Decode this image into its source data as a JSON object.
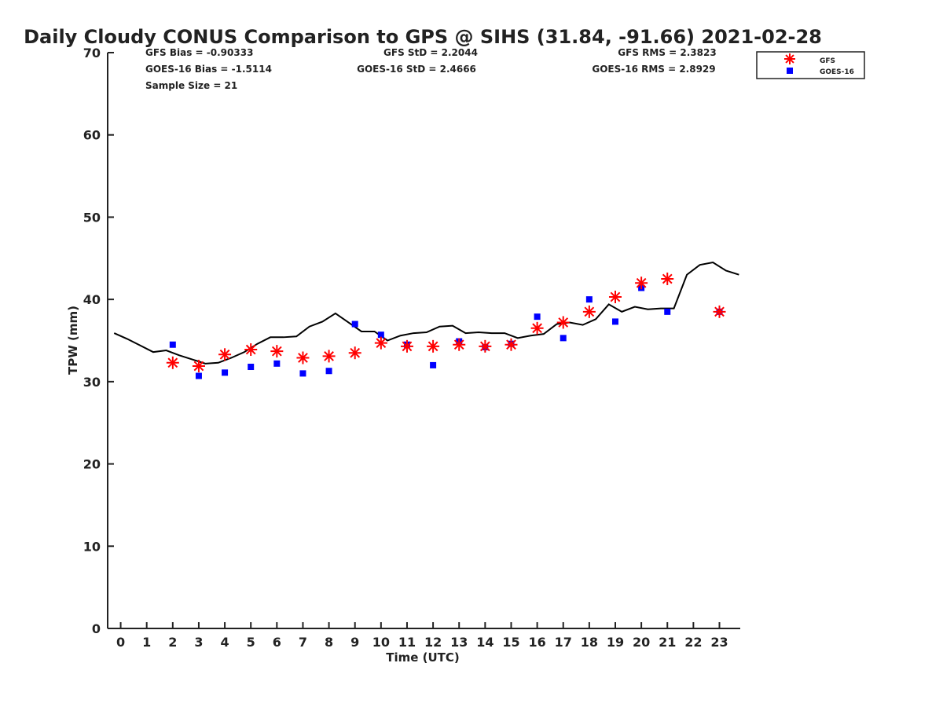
{
  "chart_data": {
    "type": "scatter",
    "title": "Daily Cloudy CONUS Comparison to GPS @ SIHS (31.84, -91.66) 2021-02-28",
    "xlabel": "Time (UTC)",
    "ylabel": "TPW (mm)",
    "xlim": [
      -0.5,
      23.8
    ],
    "ylim": [
      0,
      70
    ],
    "xticks": [
      0,
      1,
      2,
      3,
      4,
      5,
      6,
      7,
      8,
      9,
      10,
      11,
      12,
      13,
      14,
      15,
      16,
      17,
      18,
      19,
      20,
      21,
      22,
      23
    ],
    "yticks": [
      0,
      10,
      20,
      30,
      40,
      50,
      60,
      70
    ],
    "grid": false,
    "legend_position": "top-right",
    "stats": {
      "gfs_bias": "GFS Bias = -0.90333",
      "goes_bias": "GOES-16 Bias = -1.5114",
      "sample_size": "Sample Size = 21",
      "gfs_std": "GFS StD = 2.2044",
      "goes_std": "GOES-16 StD = 2.4666",
      "gfs_rms": "GFS RMS = 2.3823",
      "goes_rms": "GOES-16 RMS = 2.8929"
    },
    "series": [
      {
        "name": "GFS",
        "marker": "asterisk",
        "color": "#ff0000",
        "x": [
          2,
          3,
          4,
          5,
          6,
          7,
          8,
          9,
          10,
          11,
          12,
          13,
          14,
          15,
          16,
          17,
          18,
          19,
          20,
          21,
          23
        ],
        "y": [
          32.3,
          31.9,
          33.3,
          33.9,
          33.7,
          32.9,
          33.1,
          33.5,
          34.7,
          34.3,
          34.3,
          34.5,
          34.3,
          34.5,
          36.5,
          37.2,
          38.5,
          40.3,
          42.0,
          42.5,
          38.5
        ]
      },
      {
        "name": "GOES-16",
        "marker": "square",
        "color": "#0000ff",
        "x": [
          2,
          3,
          4,
          5,
          6,
          7,
          8,
          9,
          10,
          11,
          12,
          13,
          14,
          15,
          16,
          17,
          18,
          19,
          20,
          21,
          23
        ],
        "y": [
          34.5,
          30.7,
          31.1,
          31.8,
          32.2,
          31.0,
          31.3,
          37.0,
          35.7,
          34.5,
          32.0,
          34.9,
          34.2,
          34.6,
          37.9,
          35.3,
          40.0,
          37.3,
          41.4,
          38.5,
          38.5
        ]
      },
      {
        "name": "GPS",
        "marker": "line",
        "color": "#000000",
        "x": [
          -0.25,
          0.25,
          0.75,
          1.25,
          1.75,
          2.25,
          2.75,
          3.25,
          3.75,
          4.25,
          4.75,
          5.25,
          5.75,
          6.25,
          6.75,
          7.25,
          7.75,
          8.25,
          8.75,
          9.25,
          9.75,
          10.25,
          10.75,
          11.25,
          11.75,
          12.25,
          12.75,
          13.25,
          13.75,
          14.25,
          14.75,
          15.25,
          15.75,
          16.25,
          16.75,
          17.25,
          17.75,
          18.25,
          18.75,
          19.25,
          19.75,
          20.25,
          20.75,
          21.25,
          21.75,
          22.25,
          22.75,
          23.25,
          23.75
        ],
        "y": [
          35.9,
          35.2,
          34.4,
          33.6,
          33.8,
          33.2,
          32.7,
          32.2,
          32.3,
          32.9,
          33.6,
          34.6,
          35.4,
          35.4,
          35.5,
          36.7,
          37.3,
          38.3,
          37.2,
          36.1,
          36.1,
          35.0,
          35.6,
          35.9,
          36.0,
          36.7,
          36.8,
          35.9,
          36.0,
          35.9,
          35.9,
          35.3,
          35.6,
          35.8,
          37.0,
          37.2,
          36.9,
          37.6,
          39.4,
          38.5,
          39.1,
          38.8,
          38.9,
          38.9,
          43.0,
          44.2,
          44.5,
          43.5,
          43.0
        ]
      }
    ]
  }
}
